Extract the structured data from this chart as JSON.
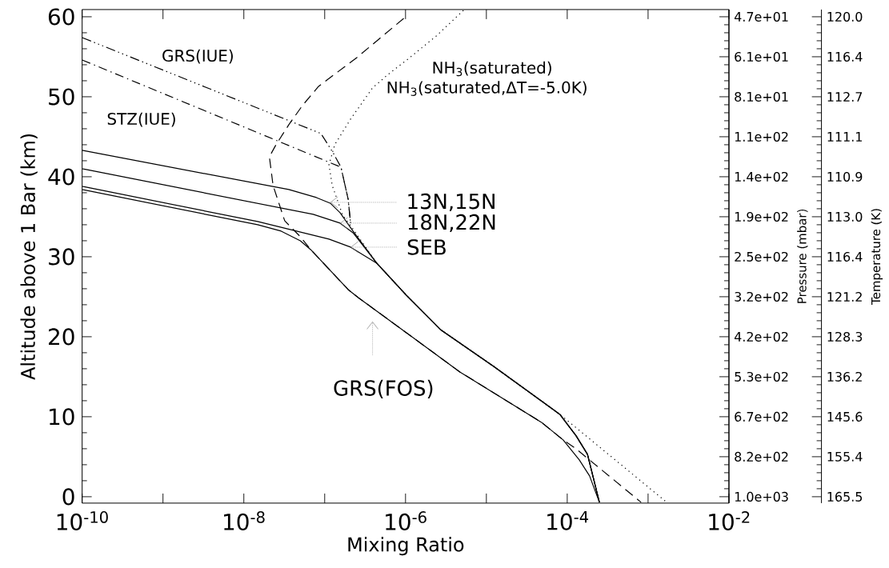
{
  "chart_data": {
    "type": "line",
    "xlabel": "Mixing Ratio",
    "ylabel": "Altitude above 1 Bar (km)",
    "y2label": "Pressure (mbar)",
    "y3label": "Temperature (K)",
    "log": "x",
    "xlim": [
      1e-10,
      0.01
    ],
    "ylim": [
      -0.8,
      60.9
    ],
    "xticks": [
      {
        "value": 1e-10,
        "label": "10$^{-10}$"
      },
      {
        "value": 1e-09,
        "label": null
      },
      {
        "value": 1e-08,
        "label": "10$^{-8}$"
      },
      {
        "value": 1e-07,
        "label": null
      },
      {
        "value": 1e-06,
        "label": "10$^{-6}$"
      },
      {
        "value": 1e-05,
        "label": null
      },
      {
        "value": 0.0001,
        "label": "10$^{-4}$"
      },
      {
        "value": 0.001,
        "label": null
      },
      {
        "value": 0.01,
        "label": "10$^{-2}$"
      }
    ],
    "yticks": [
      0,
      10,
      20,
      30,
      40,
      50,
      60
    ],
    "y2_categories": [
      "4.7e+01",
      "6.1e+01",
      "8.1e+01",
      "1.1e+02",
      "1.4e+02",
      "1.9e+02",
      "2.5e+02",
      "3.2e+02",
      "4.2e+02",
      "5.3e+02",
      "6.7e+02",
      "8.2e+02",
      "1.0e+03"
    ],
    "y_categories": [
      "120.0",
      "116.4",
      "112.7",
      "111.1",
      "110.9",
      "113.0",
      "116.4",
      "121.2",
      "128.3",
      "136.2",
      "145.6",
      "155.4",
      "165.5"
    ],
    "series": [
      {
        "color": "#000000",
        "line_style": "dotted",
        "x": [
          5.2e-06,
          2.4e-06,
          1.1e-06,
          6.1e-07,
          3.9e-07,
          2.09e-07,
          1.33e-07,
          1.13e-07,
          1.24e-07,
          1.67e-07,
          2.09e-07,
          4.4e-07,
          1.02e-06,
          2.7e-06,
          1.23e-05,
          8.1e-05,
          0.0017
        ],
        "values": [
          60.8,
          57.6,
          54.8,
          52.8,
          51.1,
          47.2,
          44.0,
          41.5,
          38.9,
          35.2,
          33.9,
          29.2,
          25.2,
          20.9,
          16.3,
          10.3,
          -0.7
        ]
      },
      {
        "color": "#000000",
        "line_style": "dashed",
        "x": [
          9.5e-07,
          2.5e-07,
          8.4e-08,
          5.3e-08,
          3.6e-08,
          2.5e-08,
          2.07e-08,
          2.3e-08,
          3.2e-08,
          5e-08,
          6.7e-08,
          1.95e-07,
          2.6e-07,
          4.7e-06,
          4.8e-05,
          8.9e-05,
          0.000128,
          0.00082
        ],
        "values": [
          59.8,
          54.9,
          51.3,
          48.9,
          46.5,
          44.0,
          42.5,
          38.9,
          34.5,
          32.5,
          30.9,
          25.9,
          24.9,
          15.6,
          9.3,
          7.1,
          6.0,
          -0.7
        ]
      },
      {
        "color": "#000000",
        "line_style": "dashdotdot",
        "x": [
          1e-10,
          9e-08,
          1.27e-07,
          1.59e-07,
          1.95e-07,
          2.09e-07
        ],
        "values": [
          57.4,
          45.4,
          43.0,
          41.2,
          37.2,
          34.2
        ]
      },
      {
        "color": "#000000",
        "line_style": "dashdot",
        "x": [
          1e-10,
          1.59e-07,
          1.95e-07,
          2.09e-07
        ],
        "values": [
          54.6,
          41.2,
          37.2,
          34.2
        ]
      },
      {
        "color": "#000000",
        "line_style": "solid",
        "x": [
          1e-10,
          3.6e-08,
          7.9e-08,
          1.17e-07,
          1.55e-07,
          2.24e-07,
          4.4e-07,
          1.02e-06,
          2.7e-06,
          1.23e-05,
          8.1e-05,
          0.000129,
          0.000178,
          0.00025
        ],
        "values": [
          43.3,
          38.4,
          37.4,
          36.7,
          35.5,
          33.2,
          29.2,
          25.2,
          20.9,
          16.3,
          10.3,
          7.6,
          5.3,
          -0.7
        ]
      },
      {
        "color": "#000000",
        "line_style": "solid",
        "x": [
          1e-10,
          7.2e-08,
          1.55e-07,
          2.24e-07,
          4.4e-07,
          1.02e-06,
          2.7e-06,
          1.23e-05,
          8.1e-05,
          0.000129,
          0.000178,
          0.00025
        ],
        "values": [
          41.0,
          35.3,
          34.2,
          33.0,
          29.2,
          25.2,
          20.9,
          16.3,
          10.3,
          7.6,
          5.3,
          -0.7
        ]
      },
      {
        "color": "#000000",
        "line_style": "solid",
        "x": [
          1e-10,
          1.48e-08,
          1.13e-07,
          2.09e-07,
          4.4e-07,
          1.02e-06,
          2.7e-06,
          1.23e-05,
          8.1e-05,
          0.000129,
          0.000178,
          0.00025
        ],
        "values": [
          38.8,
          34.4,
          32.2,
          31.2,
          29.2,
          25.2,
          20.9,
          16.3,
          10.3,
          7.6,
          5.3,
          -0.7
        ]
      },
      {
        "color": "#000000",
        "line_style": "solid",
        "x": [
          1e-10,
          1.48e-08,
          2.9e-08,
          5e-08,
          6.7e-08,
          1.95e-07,
          2.6e-07,
          4.7e-06,
          4.8e-05,
          8.9e-05,
          0.000141,
          0.000189,
          0.00025
        ],
        "values": [
          38.4,
          34.0,
          33.2,
          32.0,
          30.9,
          25.9,
          24.9,
          15.6,
          9.3,
          7.1,
          4.6,
          2.6,
          -0.7
        ]
      }
    ],
    "annotations": [
      "GRS(IUE)",
      "STZ(IUE)",
      "NH$_{3}$(saturated)",
      "NH$_{3}$(saturated,ΔT=-5.0K)",
      {
        "text": "13N,15N",
        "x": 1.17e-07,
        "y": 36.8
      },
      {
        "text": "18N,22N",
        "x": 1.55e-07,
        "y": 34.2
      },
      {
        "text": "SEB",
        "x": 2.09e-07,
        "y": 31.2
      },
      "GRS(FOS)"
    ]
  }
}
